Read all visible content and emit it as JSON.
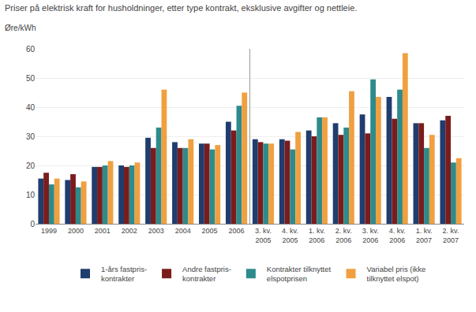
{
  "chart_data": {
    "type": "bar",
    "title": "Priser på elektrisk kraft for husholdninger, etter type kontrakt, eksklusive avgifter og nettleie.",
    "subtitle": "Øre/kWh",
    "categories": [
      "1999",
      "2000",
      "2001",
      "2002",
      "2003",
      "2004",
      "2005",
      "2006",
      "3. kv.\n2005",
      "4. kv.\n2005",
      "1. kv.\n2006",
      "2. kv.\n2006",
      "3. kv.\n2006",
      "4. kv.\n2006",
      "1. kv.\n2007",
      "2. kv.\n2007"
    ],
    "series": [
      {
        "name": "1-års fastpris-\nkontrakter",
        "color": "#1f3d6e",
        "values": [
          15.5,
          15.0,
          19.5,
          20.0,
          29.5,
          28.0,
          27.5,
          35.0,
          29.0,
          29.0,
          32.0,
          34.5,
          37.5,
          43.5,
          34.5,
          35.5
        ]
      },
      {
        "name": "Andre fastpris-\nkontrakter",
        "color": "#7b1c1c",
        "values": [
          17.5,
          17.0,
          19.5,
          19.5,
          26.0,
          26.0,
          27.5,
          32.0,
          28.0,
          28.5,
          30.0,
          30.5,
          31.0,
          36.0,
          34.5,
          37.0
        ]
      },
      {
        "name": "Kontrakter tilknyttet\nelspotprisen",
        "color": "#2e8b8b",
        "values": [
          13.5,
          12.5,
          20.0,
          20.0,
          33.0,
          26.0,
          25.5,
          40.5,
          27.5,
          25.5,
          36.5,
          33.0,
          49.5,
          46.0,
          26.0,
          21.0
        ]
      },
      {
        "name": "Variabel pris (ikke\ntilknyttet elspot)",
        "color": "#f0a040",
        "values": [
          15.5,
          14.5,
          21.5,
          21.0,
          46.0,
          29.0,
          27.0,
          45.0,
          27.5,
          31.5,
          36.5,
          45.5,
          43.5,
          58.5,
          30.5,
          22.5
        ]
      }
    ],
    "ylim": [
      0,
      60
    ],
    "yticks": [
      0,
      10,
      20,
      30,
      40,
      50,
      60
    ],
    "grid": true,
    "legend": "bottom"
  }
}
